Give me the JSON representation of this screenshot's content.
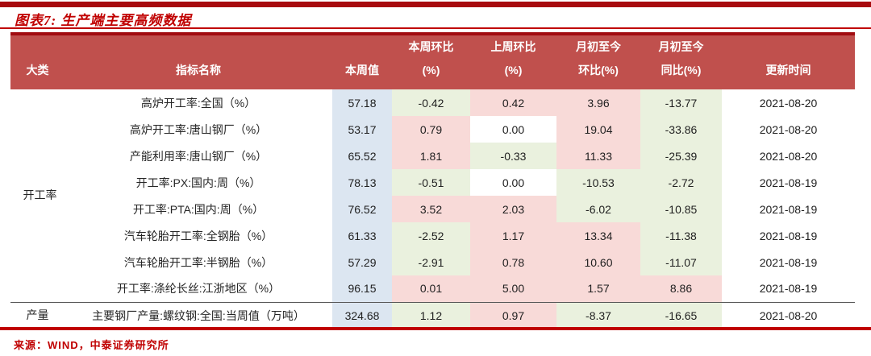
{
  "page": {
    "title": "图表7: 生产端主要高频数据",
    "source": "来源：WIND，中泰证券研究所"
  },
  "colors": {
    "accent_red": "#C00000",
    "top_bar_red": "#A80B0E",
    "header_bg": "#C0504D",
    "header_top_border": "#A10C10",
    "divider_gray": "#595959",
    "cell": {
      "blue": "#DCE6F1",
      "green": "#EAF1DE",
      "pink": "#F8DAD8",
      "white": "#FFFFFF"
    }
  },
  "table": {
    "columns": [
      {
        "key": "category",
        "lines": [
          "大类"
        ]
      },
      {
        "key": "indicator",
        "lines": [
          "指标名称"
        ]
      },
      {
        "key": "week_value",
        "lines": [
          "本周值"
        ]
      },
      {
        "key": "wow",
        "lines": [
          "本周环比",
          "(%)"
        ]
      },
      {
        "key": "prev_wow",
        "lines": [
          "上周环比",
          "(%)"
        ]
      },
      {
        "key": "mtd_mom",
        "lines": [
          "月初至今",
          "环比(%)"
        ]
      },
      {
        "key": "mtd_yoy",
        "lines": [
          "月初至今",
          "同比(%)"
        ]
      },
      {
        "key": "update_time",
        "lines": [
          "更新时间"
        ]
      }
    ],
    "rows": [
      {
        "category": "开工率",
        "category_rowspan": 8,
        "indicator": "高炉开工率:全国（%）",
        "week_value": "57.18",
        "cells": [
          {
            "v": "-0.42",
            "bg": "green"
          },
          {
            "v": "0.42",
            "bg": "pink"
          },
          {
            "v": "3.96",
            "bg": "pink"
          },
          {
            "v": "-13.77",
            "bg": "green"
          }
        ],
        "update_time": "2021-08-20"
      },
      {
        "indicator": "高炉开工率:唐山钢厂（%）",
        "week_value": "53.17",
        "cells": [
          {
            "v": "0.79",
            "bg": "pink"
          },
          {
            "v": "0.00",
            "bg": "white"
          },
          {
            "v": "19.04",
            "bg": "pink"
          },
          {
            "v": "-33.86",
            "bg": "green"
          }
        ],
        "update_time": "2021-08-20"
      },
      {
        "indicator": "产能利用率:唐山钢厂（%）",
        "week_value": "65.52",
        "cells": [
          {
            "v": "1.81",
            "bg": "pink"
          },
          {
            "v": "-0.33",
            "bg": "green"
          },
          {
            "v": "11.33",
            "bg": "pink"
          },
          {
            "v": "-25.39",
            "bg": "green"
          }
        ],
        "update_time": "2021-08-20"
      },
      {
        "indicator": "开工率:PX:国内:周（%）",
        "week_value": "78.13",
        "cells": [
          {
            "v": "-0.51",
            "bg": "green"
          },
          {
            "v": "0.00",
            "bg": "white"
          },
          {
            "v": "-10.53",
            "bg": "green"
          },
          {
            "v": "-2.72",
            "bg": "green"
          }
        ],
        "update_time": "2021-08-19"
      },
      {
        "indicator": "开工率:PTA:国内:周（%）",
        "week_value": "76.52",
        "cells": [
          {
            "v": "3.52",
            "bg": "pink"
          },
          {
            "v": "2.03",
            "bg": "pink"
          },
          {
            "v": "-6.02",
            "bg": "green"
          },
          {
            "v": "-10.85",
            "bg": "green"
          }
        ],
        "update_time": "2021-08-19"
      },
      {
        "indicator": "汽车轮胎开工率:全钢胎（%）",
        "week_value": "61.33",
        "cells": [
          {
            "v": "-2.52",
            "bg": "green"
          },
          {
            "v": "1.17",
            "bg": "pink"
          },
          {
            "v": "13.34",
            "bg": "pink"
          },
          {
            "v": "-11.38",
            "bg": "green"
          }
        ],
        "update_time": "2021-08-19"
      },
      {
        "indicator": "汽车轮胎开工率:半钢胎（%）",
        "week_value": "57.29",
        "cells": [
          {
            "v": "-2.91",
            "bg": "green"
          },
          {
            "v": "0.78",
            "bg": "pink"
          },
          {
            "v": "10.60",
            "bg": "pink"
          },
          {
            "v": "-11.07",
            "bg": "green"
          }
        ],
        "update_time": "2021-08-19"
      },
      {
        "indicator": "开工率:涤纶长丝:江浙地区（%）",
        "week_value": "96.15",
        "cells": [
          {
            "v": "0.01",
            "bg": "pink"
          },
          {
            "v": "5.00",
            "bg": "pink"
          },
          {
            "v": "1.57",
            "bg": "pink"
          },
          {
            "v": "8.86",
            "bg": "pink"
          }
        ],
        "update_time": "2021-08-19"
      },
      {
        "category": "产量",
        "category_rowspan": 1,
        "divider_above": true,
        "indicator": "主要钢厂产量:螺纹钢:全国:当周值（万吨）",
        "week_value": "324.68",
        "cells": [
          {
            "v": "1.12",
            "bg": "green"
          },
          {
            "v": "0.97",
            "bg": "pink"
          },
          {
            "v": "-8.37",
            "bg": "green"
          },
          {
            "v": "-16.65",
            "bg": "green"
          }
        ],
        "update_time": "2021-08-20"
      }
    ]
  }
}
